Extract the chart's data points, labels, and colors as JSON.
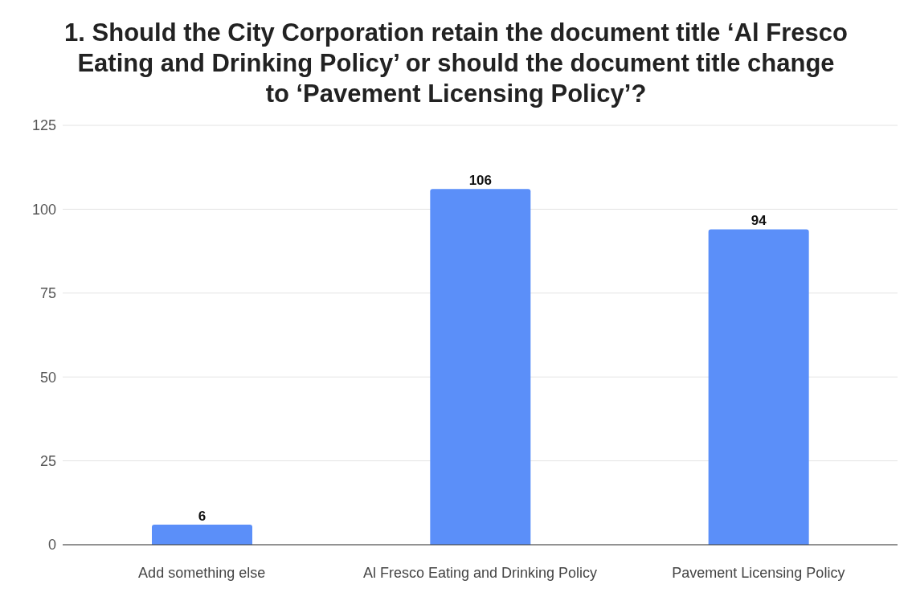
{
  "chart_data": {
    "type": "bar",
    "title": "1. Should the City Corporation retain the document title ‘Al Fresco Eating and Drinking Policy’ or should the document title change to ‘Pavement Licensing Policy’?",
    "categories": [
      "Add something else",
      "Al Fresco Eating and Drinking Policy",
      "Pavement Licensing Policy"
    ],
    "values": [
      6,
      106,
      94
    ],
    "color": "#5b8ff9",
    "ylim": [
      0,
      125
    ],
    "yticks": [
      0,
      25,
      50,
      75,
      100,
      125
    ],
    "grid": "y",
    "data_labels": true
  }
}
